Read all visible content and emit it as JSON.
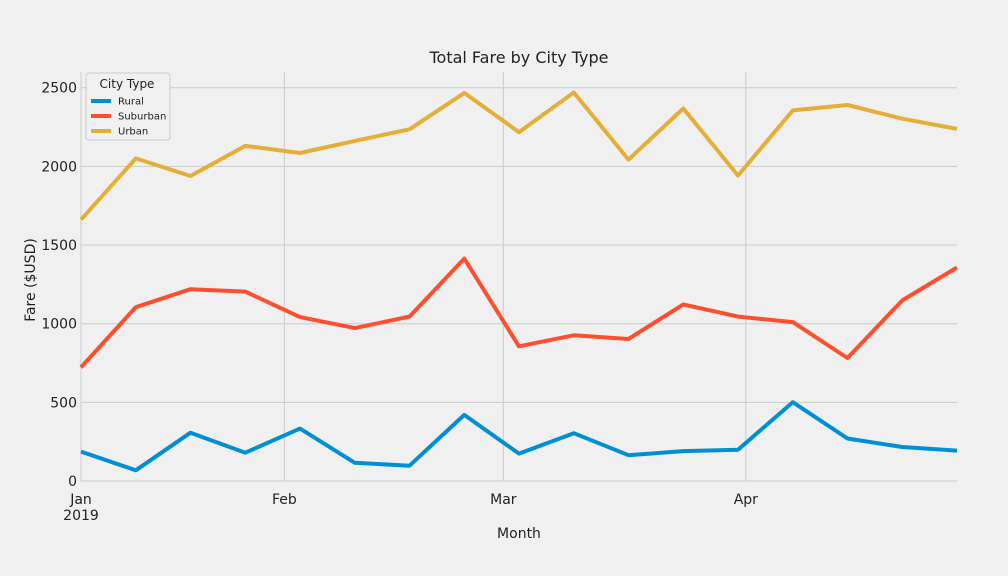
{
  "chart_data": {
    "type": "line",
    "title": "Total Fare by City Type",
    "xlabel": "Month",
    "ylabel": "Fare ($USD)",
    "x": [
      "2019-01-06",
      "2019-01-13",
      "2019-01-20",
      "2019-01-27",
      "2019-02-03",
      "2019-02-10",
      "2019-02-17",
      "2019-02-24",
      "2019-03-03",
      "2019-03-10",
      "2019-03-17",
      "2019-03-24",
      "2019-03-31",
      "2019-04-07",
      "2019-04-14",
      "2019-04-21",
      "2019-04-28"
    ],
    "x_range": [
      "2019-01-06",
      "2019-04-28"
    ],
    "x_ticks": [
      {
        "date": "2019-01-06",
        "label": "Jan",
        "sublabel": "2019"
      },
      {
        "date": "2019-02-01",
        "label": "Feb"
      },
      {
        "date": "2019-03-01",
        "label": "Mar"
      },
      {
        "date": "2019-04-01",
        "label": "Apr"
      }
    ],
    "ylim": [
      0,
      2600
    ],
    "y_ticks": [
      0,
      500,
      1000,
      1500,
      2000,
      2500
    ],
    "grid": true,
    "legend": {
      "title": "City Type",
      "placement": "top-left"
    },
    "series": [
      {
        "name": "Rural",
        "color": "#008fd5",
        "values": [
          187,
          68,
          307,
          180,
          333,
          116,
          97,
          420,
          174,
          304,
          164,
          190,
          199,
          501,
          270,
          216,
          193
        ]
      },
      {
        "name": "Suburban",
        "color": "#fc4f30",
        "values": [
          722,
          1105,
          1219,
          1204,
          1042,
          972,
          1045,
          1414,
          856,
          926,
          903,
          1122,
          1045,
          1010,
          782,
          1148,
          1357
        ]
      },
      {
        "name": "Urban",
        "color": "#e5ae38",
        "values": [
          1661,
          2051,
          1939,
          2130,
          2085,
          2162,
          2236,
          2467,
          2217,
          2470,
          2043,
          2368,
          1942,
          2356,
          2390,
          2303,
          2238
        ]
      }
    ]
  }
}
